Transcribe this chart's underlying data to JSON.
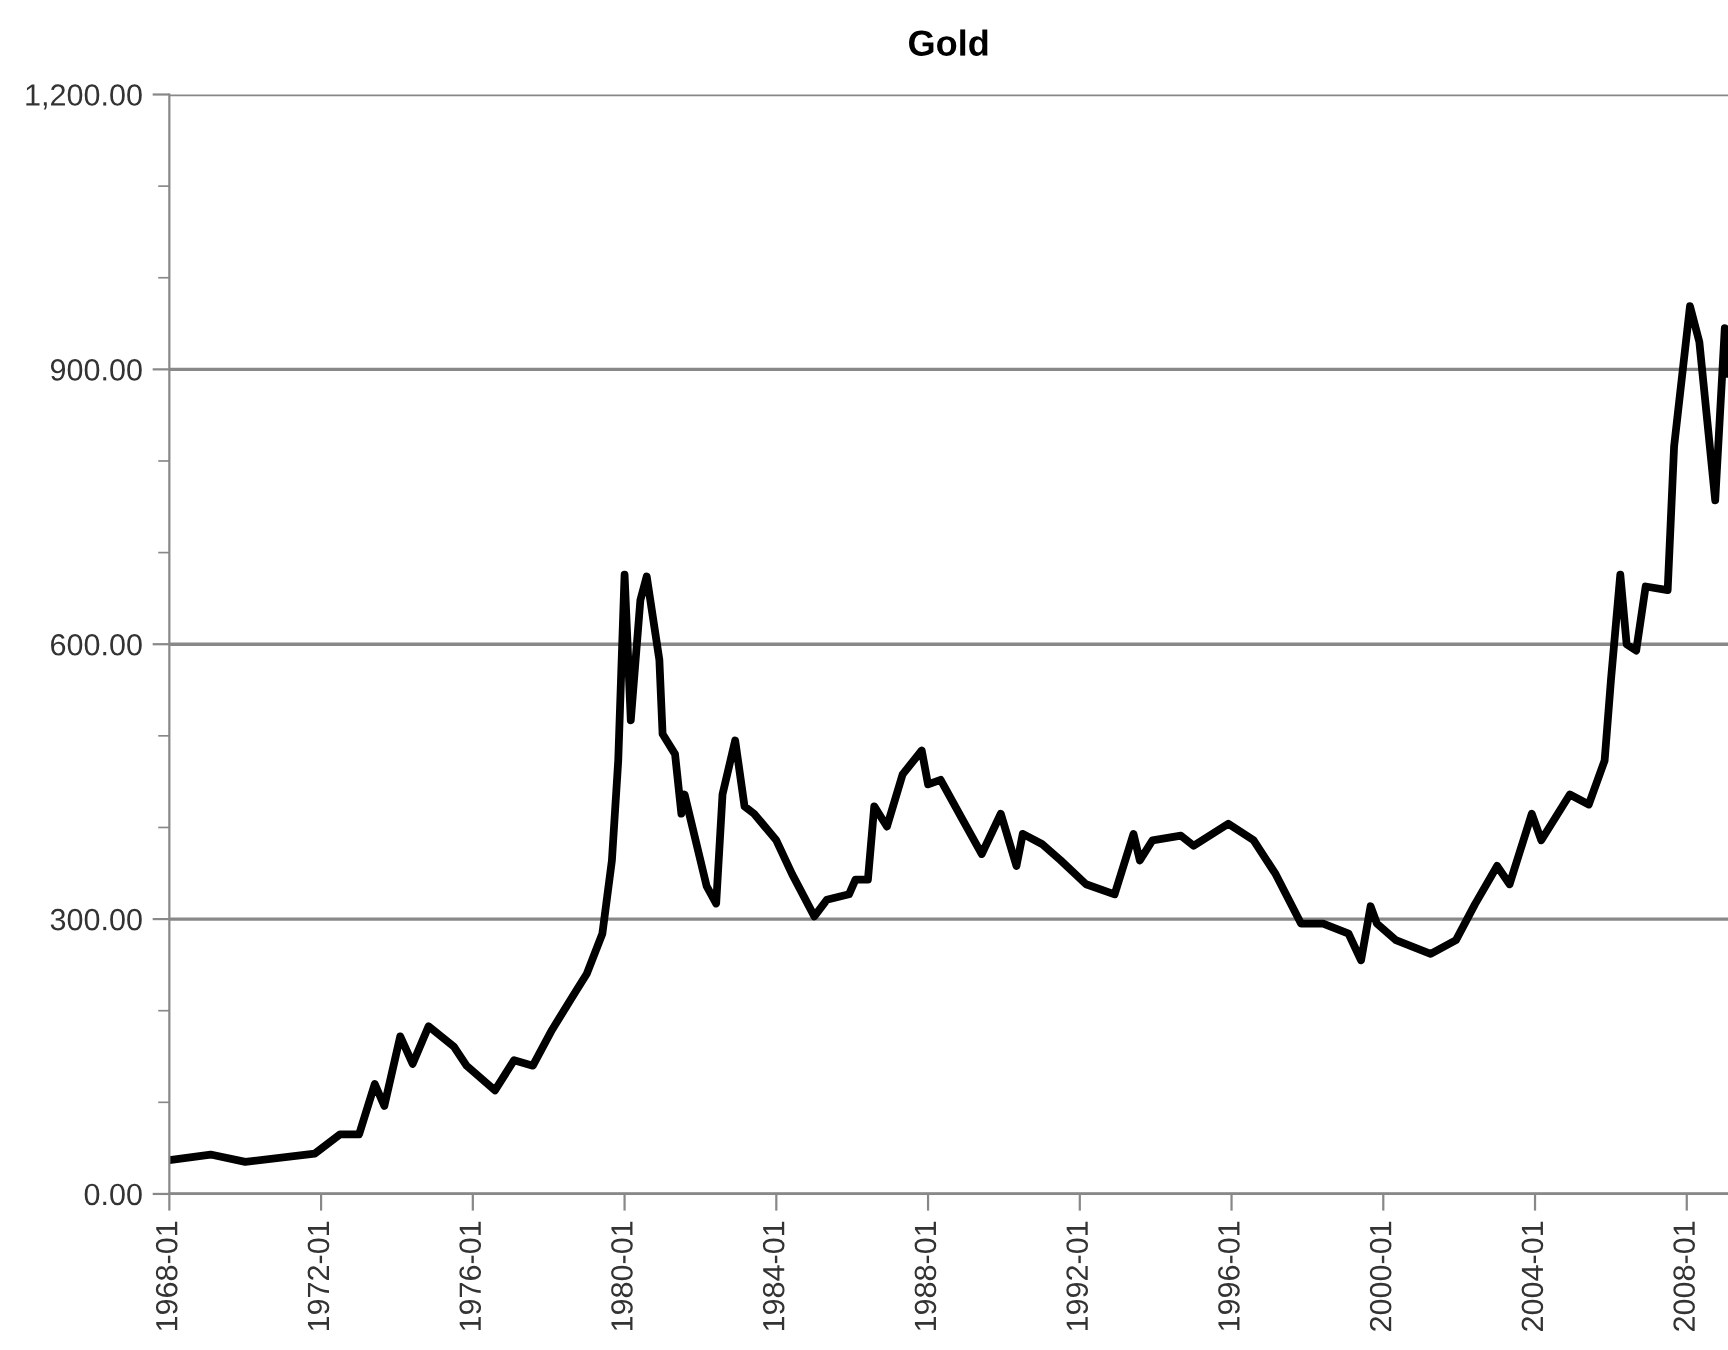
{
  "chart_data": {
    "type": "line",
    "title": "Gold",
    "x": [
      "1968-01",
      "1969-02",
      "1970-01",
      "1971-11",
      "1972-07",
      "1973-01",
      "1973-06",
      "1973-09",
      "1974-02",
      "1974-06",
      "1974-11",
      "1975-07",
      "1975-11",
      "1976-08",
      "1977-02",
      "1977-08",
      "1978-02",
      "1978-09",
      "1979-01",
      "1979-06",
      "1979-09",
      "1979-11",
      "1980-01",
      "1980-03",
      "1980-06",
      "1980-08",
      "1980-12",
      "1981-01",
      "1981-05",
      "1981-07",
      "1981-08",
      "1982-03",
      "1982-06",
      "1982-08",
      "1982-12",
      "1983-03",
      "1983-06",
      "1984-01",
      "1984-06",
      "1985-01",
      "1985-05",
      "1985-12",
      "1986-02",
      "1986-06",
      "1986-08",
      "1986-12",
      "1987-05",
      "1987-11",
      "1988-01",
      "1988-05",
      "1988-12",
      "1989-06",
      "1989-12",
      "1990-05",
      "1990-07",
      "1991-01",
      "1991-07",
      "1992-03",
      "1992-12",
      "1993-06",
      "1993-08",
      "1993-12",
      "1994-09",
      "1995-01",
      "1995-12",
      "1996-08",
      "1997-03",
      "1997-11",
      "1998-06",
      "1999-02",
      "1999-06",
      "1999-09",
      "1999-11",
      "2000-05",
      "2001-04",
      "2001-12",
      "2002-06",
      "2003-01",
      "2003-05",
      "2003-12",
      "2004-03",
      "2004-12",
      "2005-06",
      "2005-11",
      "2006-01",
      "2006-04",
      "2006-06",
      "2006-09",
      "2006-12",
      "2007-07",
      "2007-09",
      "2008-02",
      "2008-05",
      "2008-10",
      "2009-01",
      "2009-02"
    ],
    "series": [
      {
        "color": "#000000",
        "values": [
          37,
          43,
          35,
          44,
          65,
          65,
          120,
          96,
          172,
          142,
          183,
          161,
          140,
          113,
          146,
          140,
          179,
          218,
          240,
          284,
          364,
          473,
          676,
          517,
          648,
          674,
          583,
          502,
          480,
          415,
          436,
          336,
          317,
          436,
          495,
          423,
          415,
          386,
          349,
          303,
          321,
          327,
          343,
          343,
          423,
          401,
          458,
          484,
          447,
          452,
          408,
          371,
          415,
          358,
          393,
          382,
          364,
          338,
          327,
          393,
          364,
          386,
          391,
          380,
          404,
          386,
          349,
          295,
          295,
          284,
          255,
          314,
          295,
          277,
          262,
          277,
          316,
          358,
          338,
          415,
          386,
          436,
          425,
          473,
          561,
          676,
          600,
          593,
          663,
          659,
          816,
          969,
          930,
          757,
          945,
          895
        ]
      }
    ],
    "xlim": [
      "1968-01",
      "2009-02"
    ],
    "xticks": [
      "1968-01",
      "1972-01",
      "1976-01",
      "1980-01",
      "1984-01",
      "1988-01",
      "1992-01",
      "1996-01",
      "2000-01",
      "2004-01",
      "2008-01"
    ],
    "ylim": [
      0,
      1200
    ],
    "yticks": [
      {
        "value": 0,
        "label": "0.00"
      },
      {
        "value": 100,
        "label": null
      },
      {
        "value": 200,
        "label": null
      },
      {
        "value": 300,
        "label": "300.00"
      },
      {
        "value": 400,
        "label": null
      },
      {
        "value": 500,
        "label": null
      },
      {
        "value": 600,
        "label": "600.00"
      },
      {
        "value": 700,
        "label": null
      },
      {
        "value": 800,
        "label": null
      },
      {
        "value": 900,
        "label": "900.00"
      },
      {
        "value": 1000,
        "label": null
      },
      {
        "value": 1100,
        "label": null
      },
      {
        "value": 1200,
        "label": "1,200.00"
      }
    ],
    "grid": "y",
    "line_style": "solid",
    "marker": "none"
  }
}
